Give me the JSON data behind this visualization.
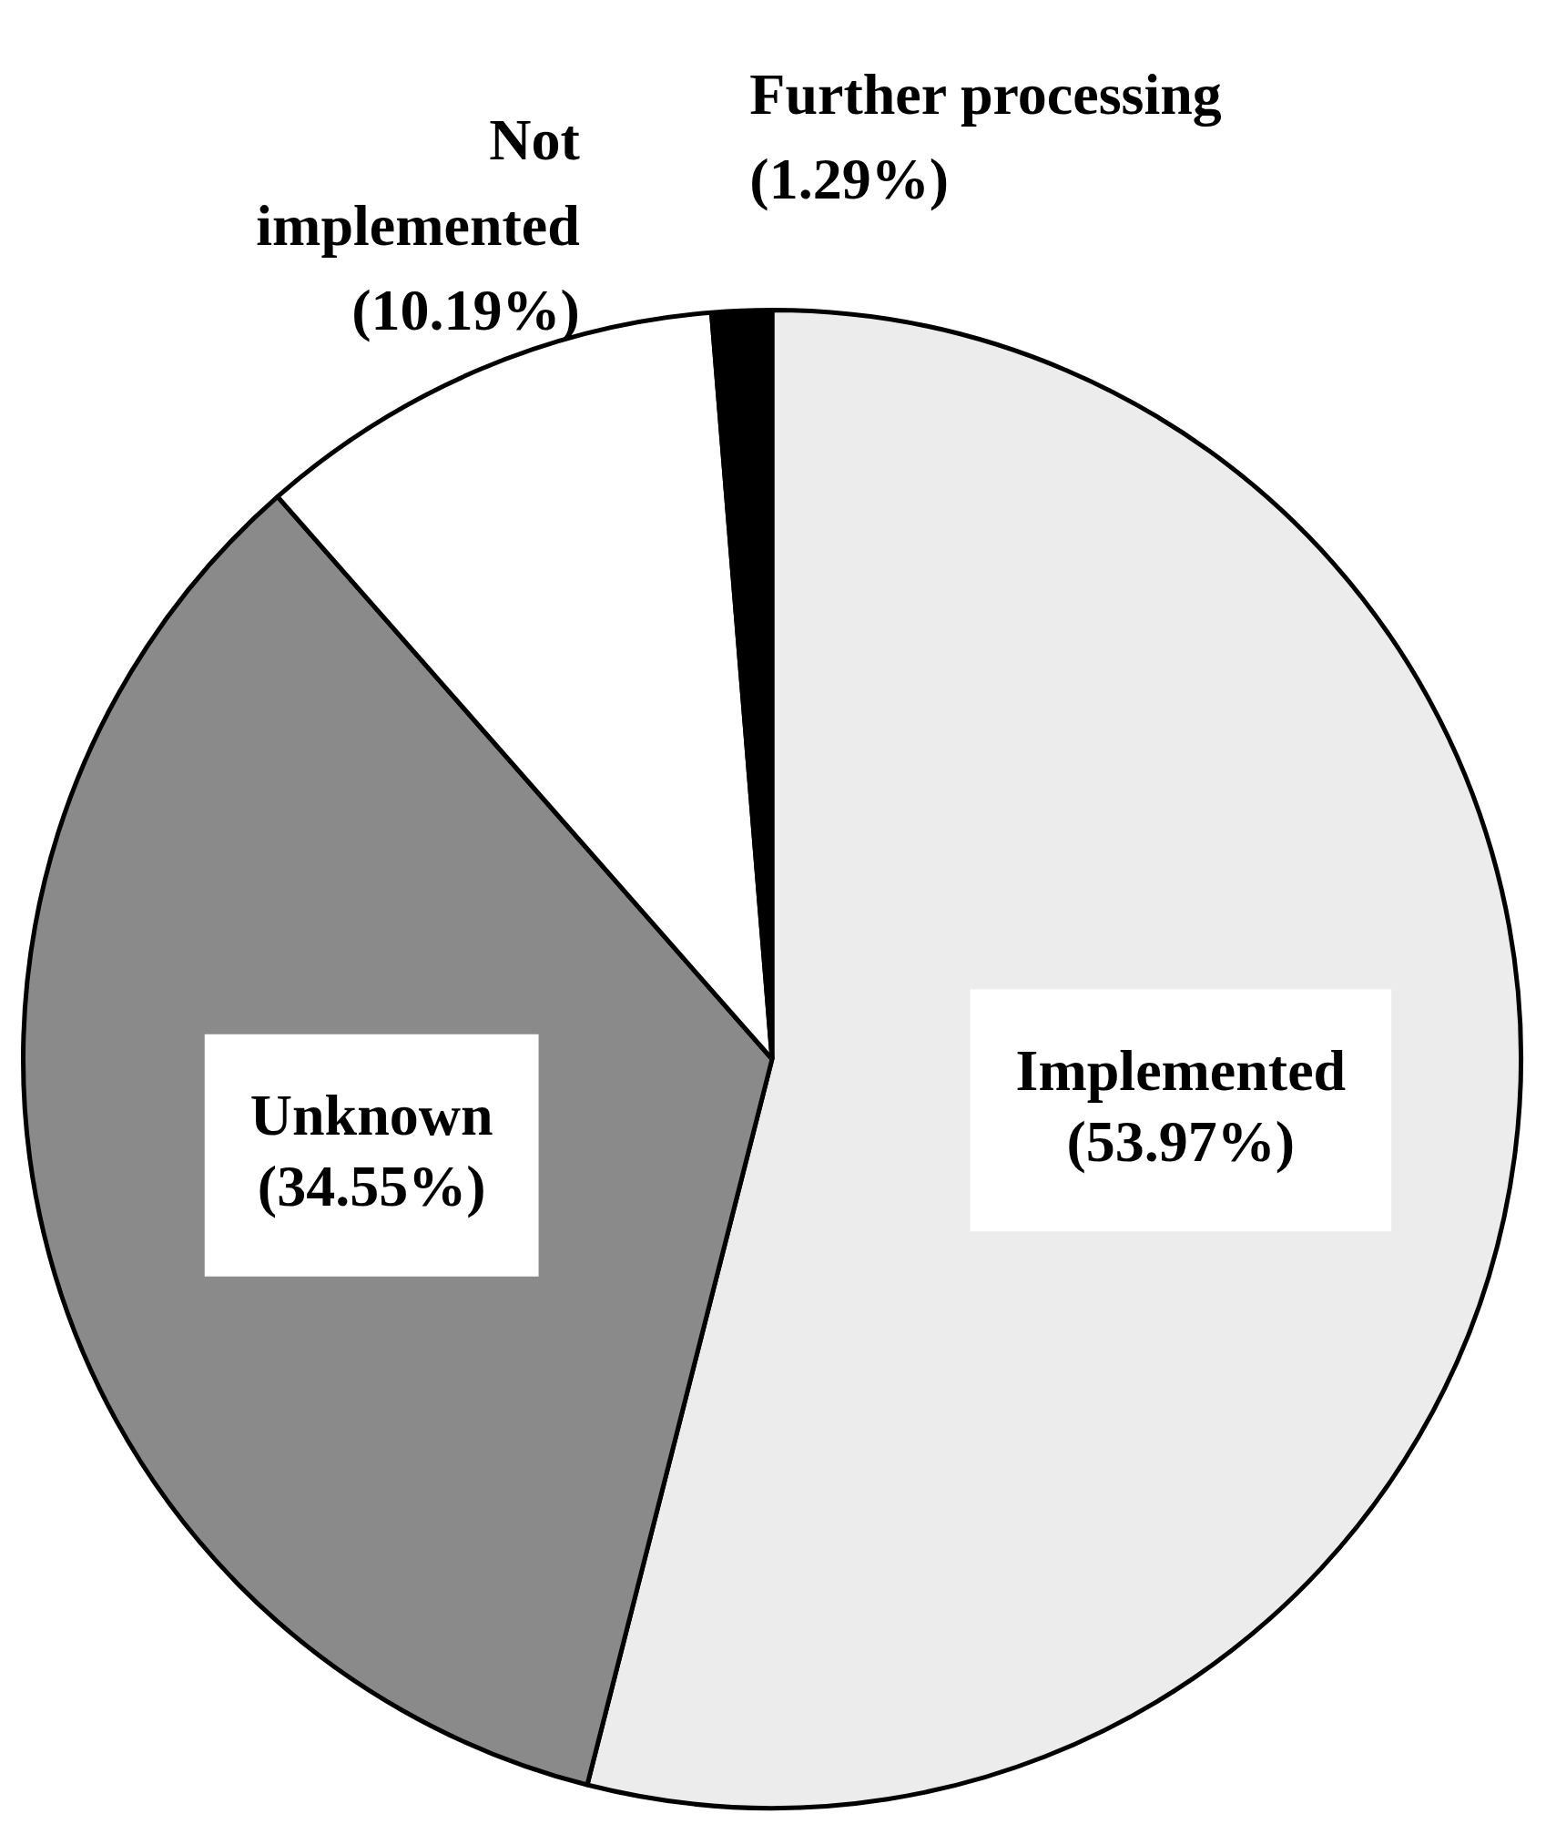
{
  "chart_data": {
    "type": "pie",
    "categories": [
      "Implemented",
      "Unknown",
      "Not implemented",
      "Further processing"
    ],
    "values": [
      53.97,
      34.55,
      10.19,
      1.29
    ],
    "value_labels": [
      "(53.97%)",
      "(34.55%)",
      "(10.19%)",
      "(1.29%)"
    ],
    "colors": [
      "#ececec",
      "#8a8a8a",
      "#ffffff",
      "#000000"
    ],
    "legend": false
  }
}
